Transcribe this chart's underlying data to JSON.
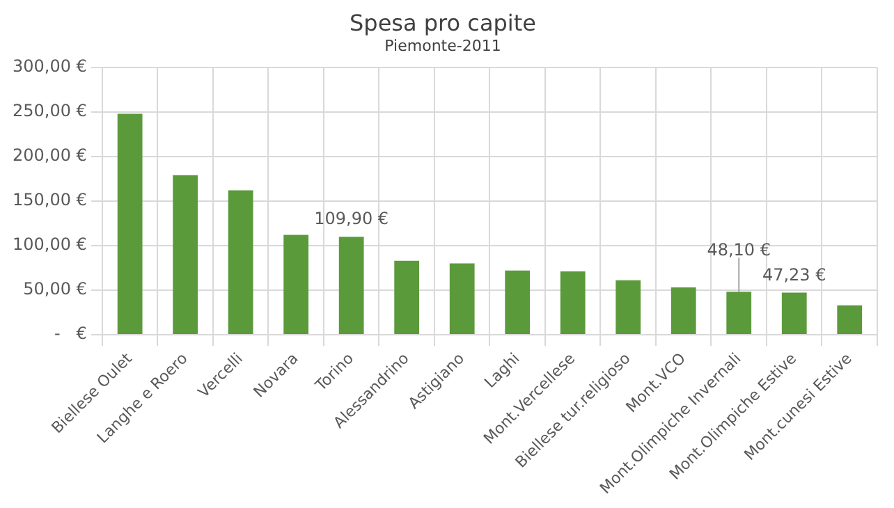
{
  "chart_data": {
    "type": "bar",
    "title": "Spesa pro capite",
    "subtitle": "Piemonte-2011",
    "categories": [
      "Biellese Oulet",
      "Langhe e Roero",
      "Vercelli",
      "Novara",
      "Torino",
      "Alessandrino",
      "Astigiano",
      "Laghi",
      "Mont.Vercellese",
      "Biellese tur.religioso",
      "Mont.VCO",
      "Mont.Olimpiche Invernali",
      "Mont.Olimpiche Estive",
      "Mont.cunesi Estive"
    ],
    "values": [
      248,
      179,
      162,
      112,
      109.9,
      83,
      80,
      72,
      71,
      61,
      53,
      48.1,
      47.23,
      33
    ],
    "value_labels": [
      null,
      null,
      null,
      null,
      "109,90 €",
      null,
      null,
      null,
      null,
      null,
      null,
      "48,10 €",
      "47,23 €",
      null
    ],
    "color": "#5b9a3a",
    "ylim": [
      0,
      300
    ],
    "yticks": [
      {
        "value": 0,
        "label": "-   €"
      },
      {
        "value": 50,
        "label": "50,00 €"
      },
      {
        "value": 100,
        "label": "100,00 €"
      },
      {
        "value": 150,
        "label": "150,00 €"
      },
      {
        "value": 200,
        "label": "200,00 €"
      },
      {
        "value": 250,
        "label": "250,00 €"
      },
      {
        "value": 300,
        "label": "300,00 €"
      }
    ],
    "grid": true
  }
}
